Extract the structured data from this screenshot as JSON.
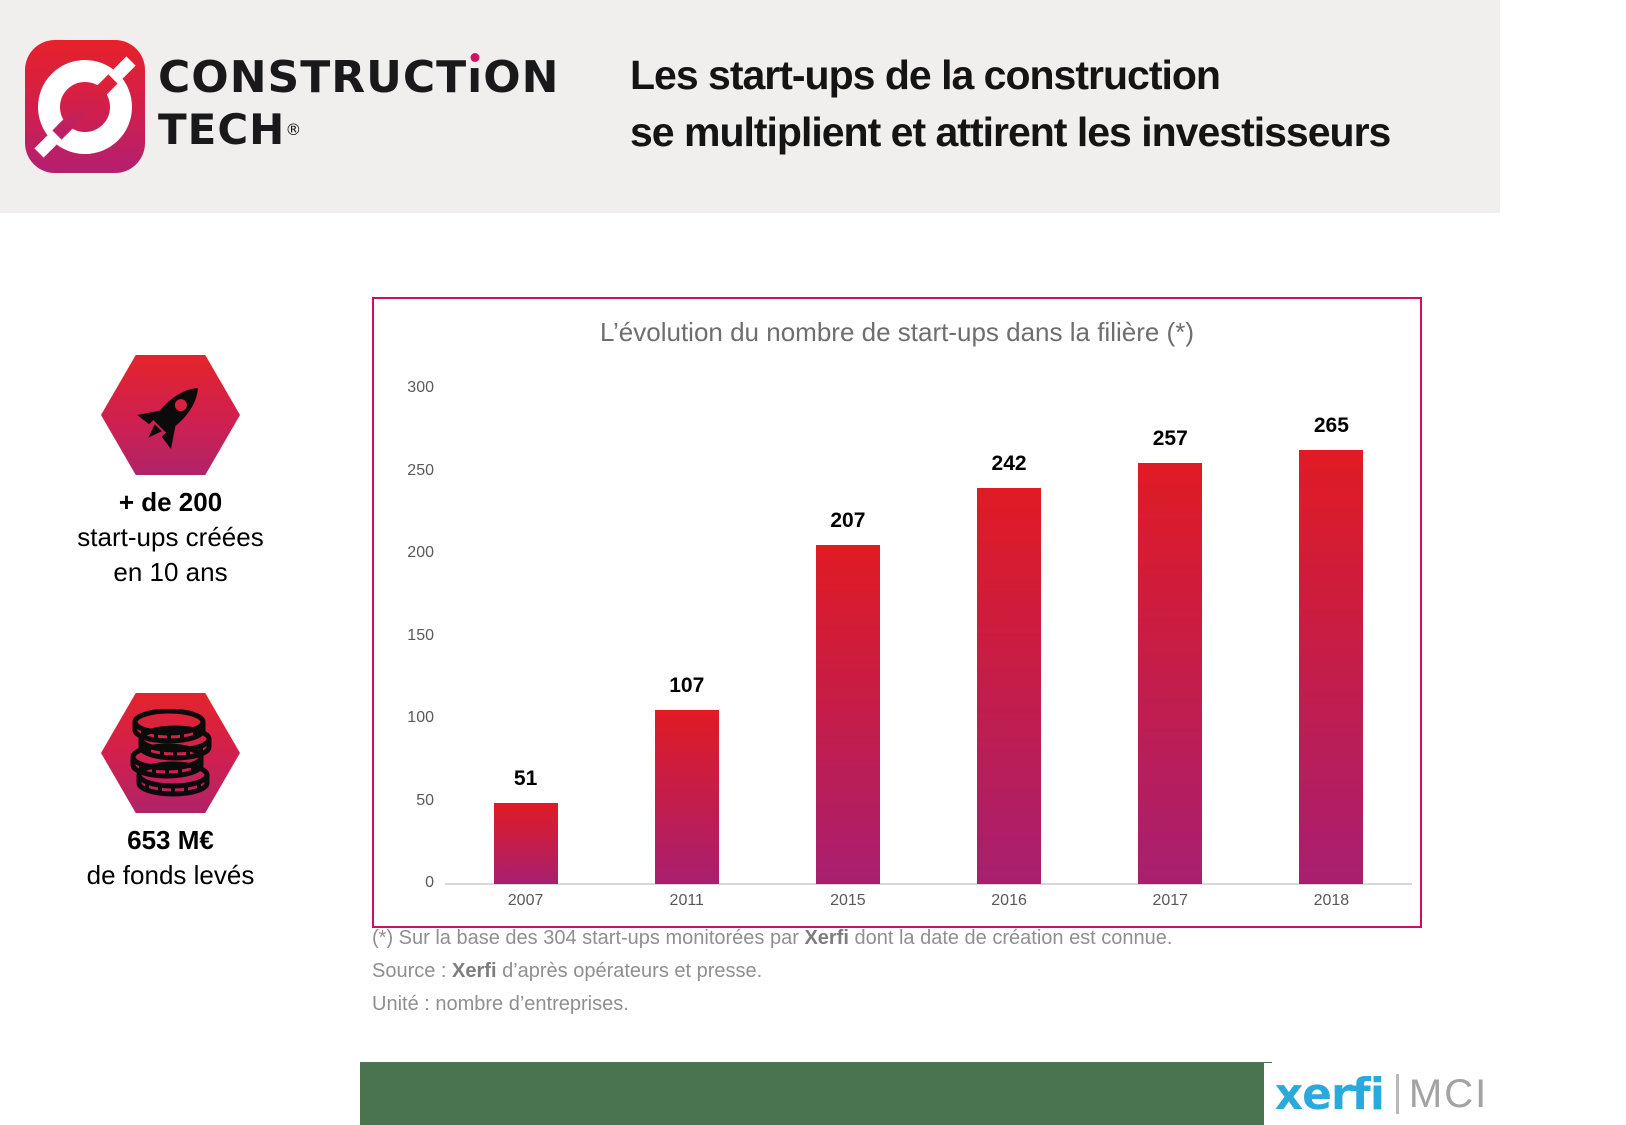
{
  "header": {
    "brand": {
      "line1_pre": "CONSTRUCT",
      "line1_i": "ı",
      "line1_post": "ON",
      "line2": "TECH",
      "reg": "®"
    },
    "title_line1": "Les start-ups de la construction",
    "title_line2": "se multiplient et attirent les investisseurs"
  },
  "stats": [
    {
      "icon": "rocket-icon",
      "lines": [
        "+ de 200",
        "start-ups créées",
        "en 10 ans"
      ]
    },
    {
      "icon": "coins-icon",
      "lines": [
        "653 M€",
        "de fonds levés"
      ]
    }
  ],
  "chart_data": {
    "type": "bar",
    "title": "L’évolution du nombre de start-ups dans la filière (*)",
    "categories": [
      "2007",
      "2011",
      "2015",
      "2016",
      "2017",
      "2018"
    ],
    "values": [
      51,
      107,
      207,
      242,
      257,
      265
    ],
    "ylim": [
      0,
      300
    ],
    "yticks": [
      0,
      50,
      100,
      150,
      200,
      250,
      300
    ],
    "grid": false,
    "legend": false,
    "unit": "nombre d’entreprises",
    "bar_color_top": "#e01b24",
    "bar_color_bottom": "#a81f70",
    "border_color": "#cb0f62"
  },
  "footnotes": {
    "line1_pre": "(*) Sur la base des 304 start-ups monitorées par ",
    "line1_bold": "Xerfi",
    "line1_post": " dont la date de création est connue.",
    "line2_pre": "Source : ",
    "line2_bold": "Xerfi",
    "line2_post": " d’après opérateurs et presse.",
    "line3": "Unité : nombre d’entreprises."
  },
  "footer": {
    "xerfi": "xerfi",
    "mci": "MCI"
  },
  "colors": {
    "accent_green": "#4a7350",
    "xerfi_blue": "#2aa9dc",
    "header_bg": "#f0efee",
    "chart_border": "#cb0f62"
  }
}
